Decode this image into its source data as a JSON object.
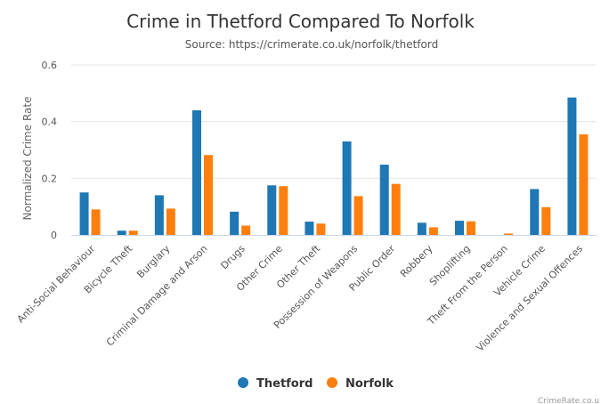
{
  "chart_data": {
    "type": "bar",
    "title": "Crime in Thetford Compared To Norfolk",
    "subtitle": "Source: https://crimerate.co.uk/norfolk/thetford",
    "xlabel": "",
    "ylabel": "Normalized Crime Rate",
    "ylim": [
      0,
      0.6
    ],
    "yticks": [
      "0",
      "0.2",
      "0.4",
      "0.6"
    ],
    "grid": true,
    "legend_position": "bottom-center",
    "categories": [
      "Anti-Social Behaviour",
      "Bicycle Theft",
      "Burglary",
      "Criminal Damage and Arson",
      "Drugs",
      "Other Crime",
      "Other Theft",
      "Possession of Weapons",
      "Public Order",
      "Robbery",
      "Shoplifting",
      "Theft From the Person",
      "Vehicle Crime",
      "Violence and Sexual Offences"
    ],
    "series": [
      {
        "name": "Thetford",
        "color": "#1f77b4",
        "values": [
          0.15,
          0.015,
          0.14,
          0.44,
          0.082,
          0.175,
          0.047,
          0.33,
          0.248,
          0.043,
          0.05,
          0.0,
          0.162,
          0.485
        ]
      },
      {
        "name": "Norfolk",
        "color": "#ff7f0e",
        "values": [
          0.09,
          0.015,
          0.093,
          0.282,
          0.033,
          0.172,
          0.04,
          0.137,
          0.18,
          0.027,
          0.048,
          0.005,
          0.098,
          0.355
        ]
      }
    ],
    "credit": "CrimeRate.co.u"
  }
}
